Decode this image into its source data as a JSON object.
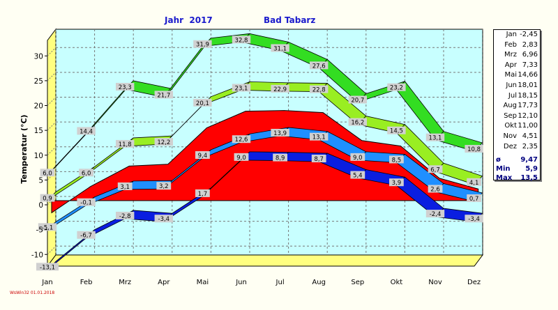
{
  "header": {
    "year_label": "Jahr  2017",
    "location": "Bad Tabarz"
  },
  "footer": {
    "credit": "WsWin32  01.01.2018"
  },
  "colors": {
    "max_band": "#33dd22",
    "avg_max_band": "#99ee22",
    "avg_band": "#1f8fff",
    "min_band": "#0a1ee0",
    "mean_area": "#ff0000",
    "plot_bg": "#c8ffff",
    "edge": "#ffff80"
  },
  "legend": {
    "rows": [
      {
        "month": "Jan",
        "value": "-2,45"
      },
      {
        "month": "Feb",
        "value": "2,83"
      },
      {
        "month": "Mrz",
        "value": "6,96"
      },
      {
        "month": "Apr",
        "value": "7,33"
      },
      {
        "month": "Mai",
        "value": "14,66"
      },
      {
        "month": "Jun",
        "value": "18,01"
      },
      {
        "month": "Jul",
        "value": "18,15"
      },
      {
        "month": "Aug",
        "value": "17,73"
      },
      {
        "month": "Sep",
        "value": "12,10"
      },
      {
        "month": "Okt",
        "value": "11,00"
      },
      {
        "month": "Nov",
        "value": "4,51"
      },
      {
        "month": "Dez",
        "value": "2,35"
      }
    ],
    "stats": [
      {
        "label": "ø",
        "value": "9,47"
      },
      {
        "label": "Min",
        "value": "5,9"
      },
      {
        "label": "Max",
        "value": "13,5"
      }
    ]
  },
  "chart_data": {
    "type": "area",
    "title": "Jahr  2017",
    "subtitle": "Bad Tabarz",
    "ylabel": "Temperatur (°C)",
    "categories": [
      "Jan",
      "Feb",
      "Mrz",
      "Apr",
      "Mai",
      "Jun",
      "Jul",
      "Aug",
      "Sep",
      "Okt",
      "Nov",
      "Dez"
    ],
    "ylim": [
      -13,
      33
    ],
    "yticks": [
      -10,
      -5,
      0,
      5,
      10,
      15,
      20,
      25,
      30
    ],
    "ytick_labels": [
      "-10",
      "-5",
      "0",
      "5",
      "10",
      "15",
      "20",
      "25",
      "30"
    ],
    "grid": true,
    "series": [
      {
        "key": "max",
        "values": [
          6.0,
          14.4,
          23.3,
          21.7,
          31.9,
          32.8,
          31.1,
          27.6,
          20.7,
          23.2,
          13.1,
          10.8
        ],
        "labels": [
          "6,0",
          "14,4",
          "23,3",
          "21,7",
          "31,9",
          "32,8",
          "31,1",
          "27,6",
          "20,7",
          "23,2",
          "13,1",
          "10,8"
        ]
      },
      {
        "key": "avg_max",
        "values": [
          0.9,
          6.0,
          11.8,
          12.2,
          20.1,
          23.1,
          22.9,
          22.8,
          16.2,
          14.5,
          6.7,
          4.1
        ],
        "labels": [
          "0,9",
          "6,0",
          "11,8",
          "12,2",
          "20,1",
          "23,1",
          "22,9",
          "22,8",
          "16,2",
          "14,5",
          "6,7",
          "4,1"
        ]
      },
      {
        "key": "mean",
        "values": [
          -2.45,
          2.83,
          6.96,
          7.33,
          14.66,
          18.01,
          18.15,
          17.73,
          12.1,
          11.0,
          4.51,
          2.35
        ]
      },
      {
        "key": "avg",
        "values": [
          -5.1,
          -0.1,
          3.1,
          3.2,
          9.4,
          12.6,
          13.9,
          13.1,
          9.0,
          8.5,
          2.6,
          0.7
        ],
        "labels": [
          "-5,1",
          "-0,1",
          "3,1",
          "3,2",
          "9,4",
          "12,6",
          "13,9",
          "13,1",
          "9,0",
          "8,5",
          "2,6",
          "0,7"
        ]
      },
      {
        "key": "min",
        "values": [
          -13.1,
          -6.7,
          -2.8,
          -3.4,
          1.7,
          9.0,
          8.9,
          8.7,
          5.4,
          3.9,
          -2.4,
          -3.4
        ],
        "labels": [
          "-13,1",
          "-6,7",
          "-2,8",
          "-3,4",
          "1,7",
          "9,0",
          "8,9",
          "8,7",
          "5,4",
          "3,9",
          "-2,4",
          "-3,4"
        ]
      }
    ]
  }
}
